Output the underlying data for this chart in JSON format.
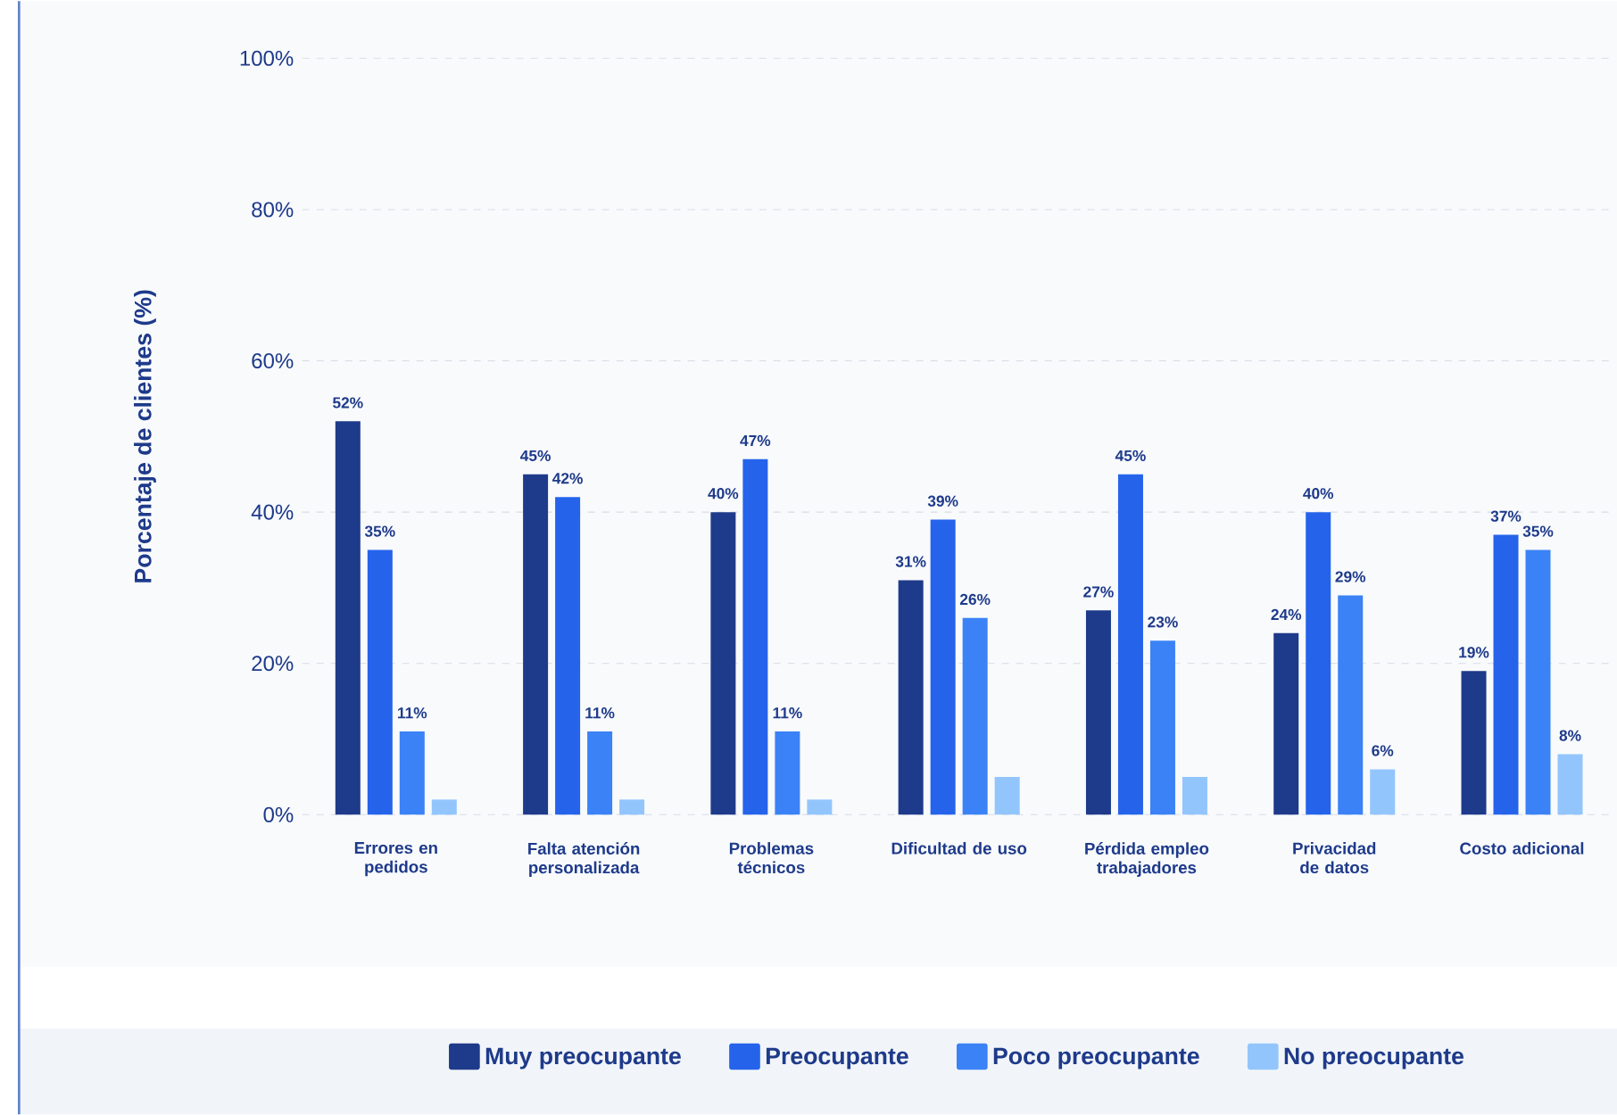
{
  "chart_data": {
    "type": "bar",
    "ylabel": "Porcentaje de clientes (%)",
    "categories": [
      "Errores en pedidos",
      "Falta atención personalizada",
      "Problemas técnicos",
      "Dificultad de uso",
      "Pérdida empleo trabajadores",
      "Privacidad de datos",
      "Costo adicional"
    ],
    "series": [
      {
        "name": "Muy preocupante",
        "color": "#1e3a8a",
        "values": [
          52,
          45,
          40,
          31,
          27,
          24,
          19
        ],
        "value_labels": [
          "52%",
          "45%",
          "40%",
          "31%",
          "27%",
          "24%",
          "19%"
        ]
      },
      {
        "name": "Preocupante",
        "color": "#2563eb",
        "values": [
          35,
          42,
          47,
          39,
          45,
          40,
          37
        ],
        "value_labels": [
          "35%",
          "42%",
          "47%",
          "39%",
          "45%",
          "40%",
          "37%"
        ]
      },
      {
        "name": "Poco preocupante",
        "color": "#3b82f6",
        "values": [
          11,
          11,
          11,
          26,
          23,
          29,
          35
        ],
        "value_labels": [
          "11%",
          "11%",
          "11%",
          "26%",
          "23%",
          "29%",
          "35%"
        ]
      },
      {
        "name": "No preocupante",
        "color": "#93c5fd",
        "values": [
          2,
          2,
          2,
          5,
          5,
          6,
          8
        ],
        "value_labels": [
          null,
          null,
          null,
          null,
          null,
          "6%",
          "8%"
        ]
      }
    ],
    "ylim": [
      0,
      100
    ],
    "yticks": [
      {
        "value": 0,
        "label": "0%"
      },
      {
        "value": 20,
        "label": "20%"
      },
      {
        "value": 40,
        "label": "40%"
      },
      {
        "value": 60,
        "label": "60%"
      },
      {
        "value": 80,
        "label": "80%"
      },
      {
        "value": 100,
        "label": "100%"
      }
    ],
    "grid": "y",
    "legend": "bottom"
  }
}
